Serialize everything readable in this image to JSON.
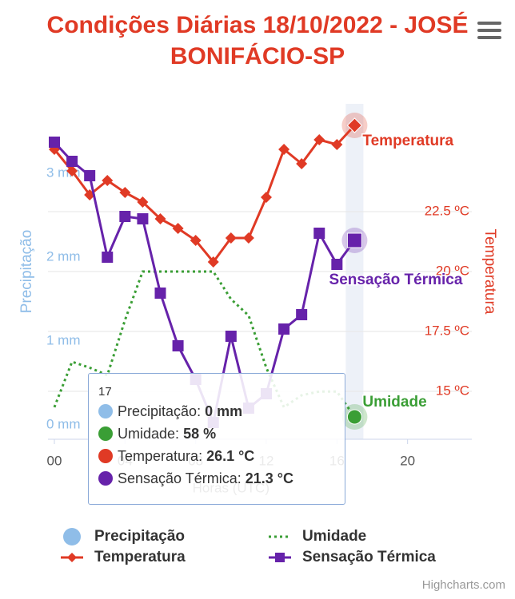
{
  "chart_data": {
    "type": "line",
    "title": "Condições Diárias 18/10/2022 - JOSÉ BONIFÁCIO-SP",
    "x_label": "Horas (UTC)",
    "y_label": "Precipitação",
    "y2_label": "Temperatura",
    "x": [
      0,
      1,
      2,
      3,
      4,
      5,
      6,
      7,
      8,
      9,
      10,
      11,
      12,
      13,
      14,
      15,
      16,
      17
    ],
    "xlim": [
      0,
      24
    ],
    "xticks": [
      {
        "value": 0,
        "label": "00"
      },
      {
        "value": 4,
        "label": "04"
      },
      {
        "value": 8,
        "label": "08"
      },
      12,
      16,
      20
    ],
    "ylim": [
      0,
      4
    ],
    "yticks": [
      {
        "value": 0,
        "label": "0 mm"
      },
      {
        "value": 1,
        "label": "1 mm"
      },
      {
        "value": 2,
        "label": "2 mm"
      },
      {
        "value": 3,
        "label": "3 mm"
      }
    ],
    "y2lim": [
      13,
      27
    ],
    "y2ticks": [
      {
        "value": 15,
        "label": "15 ºC"
      },
      {
        "value": 17.5,
        "label": "17.5 ºC"
      },
      {
        "value": 20,
        "label": "20 ºC"
      },
      {
        "value": 22.5,
        "label": "22.5 ºC"
      }
    ],
    "y3lim": [
      55,
      100
    ],
    "grid": true,
    "series": [
      {
        "name": "Precipitação",
        "type": "column",
        "color": "#8fbde8",
        "axis": "y",
        "values": [
          0,
          0,
          0,
          0,
          0,
          0,
          0,
          0,
          0,
          0,
          0,
          0,
          0,
          0,
          0,
          0,
          0,
          0
        ]
      },
      {
        "name": "Umidade",
        "type": "dotted",
        "color": "#3a9e35",
        "axis": "y3",
        "values": [
          59.3,
          65.4,
          64.6,
          63.6,
          71,
          77.5,
          77.5,
          77.5,
          77.5,
          77.5,
          73.8,
          71.6,
          64.6,
          59.3,
          60.9,
          61.4,
          61.4,
          58
        ]
      },
      {
        "name": "Temperatura",
        "type": "diamond",
        "color": "#e03a25",
        "axis": "y2",
        "values": [
          25.1,
          24.2,
          23.2,
          23.8,
          23.3,
          22.9,
          22.2,
          21.8,
          21.3,
          20.4,
          21.4,
          21.4,
          23.1,
          25.1,
          24.5,
          25.5,
          25.3,
          26.1
        ]
      },
      {
        "name": "Sensação Térmica",
        "type": "square",
        "color": "#6622aa",
        "axis": "y2",
        "values": [
          25.4,
          24.6,
          24.0,
          20.6,
          22.3,
          22.2,
          19.1,
          16.9,
          15.5,
          13.7,
          17.3,
          14.3,
          14.9,
          17.6,
          18.2,
          21.6,
          20.3,
          21.3
        ]
      }
    ],
    "tooltip": {
      "title": "17",
      "items": [
        {
          "name": "Precipitação",
          "value": "0 mm"
        },
        {
          "name": "Umidade",
          "value": "58 %"
        },
        {
          "name": "Temperatura",
          "value": "26.1 °C"
        },
        {
          "name": "Sensação Térmica",
          "value": "21.3 °C"
        }
      ]
    },
    "credits": "Highcharts.com"
  }
}
